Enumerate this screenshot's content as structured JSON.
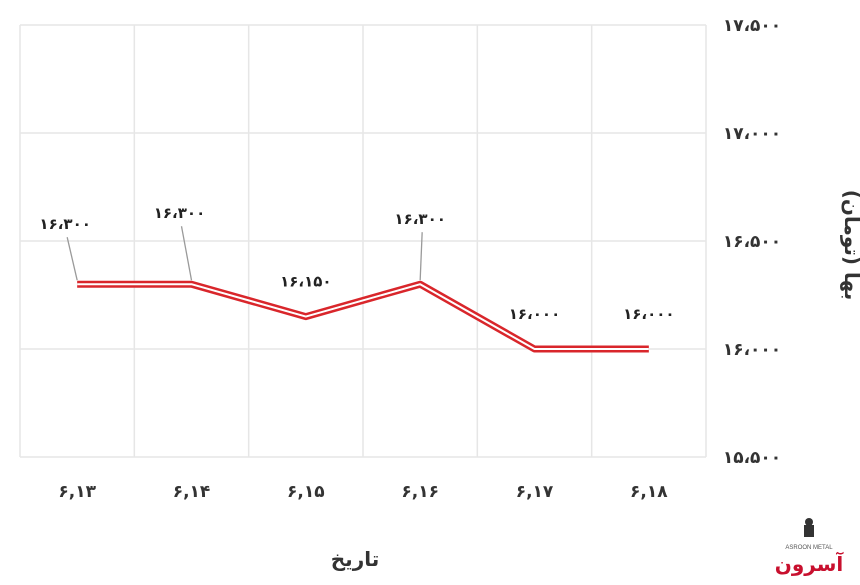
{
  "chart_data": {
    "type": "line",
    "categories": [
      "۶,۱۳",
      "۶,۱۴",
      "۶,۱۵",
      "۶,۱۶",
      "۶,۱۷",
      "۶,۱۸"
    ],
    "series": [
      {
        "values": [
          16300,
          16300,
          16150,
          16300,
          16000,
          16000
        ],
        "data_labels": [
          "۱۶،۳۰۰",
          "۱۶،۳۰۰",
          "۱۶،۱۵۰",
          "۱۶،۳۰۰",
          "۱۶،۰۰۰",
          "۱۶،۰۰۰"
        ]
      }
    ],
    "y_ticks": [
      15500,
      16000,
      16500,
      17000,
      17500
    ],
    "y_tick_labels": [
      "۱۵،۵۰۰",
      "۱۶،۰۰۰",
      "۱۶،۵۰۰",
      "۱۷،۰۰۰",
      "۱۷،۵۰۰"
    ],
    "ylim": [
      15500,
      17500
    ],
    "xlabel": "تاریخ",
    "ylabel": "بها (تومان)",
    "title": "",
    "grid": true,
    "colors": {
      "line": "#d9262b",
      "grid": "#e6e6e6",
      "leader": "#9a9a9a"
    }
  },
  "logo": {
    "text": "آسرون",
    "subtext": "ASROON METAL"
  }
}
